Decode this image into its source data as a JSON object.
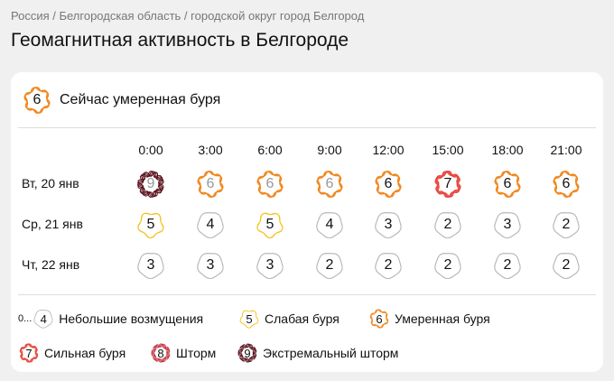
{
  "breadcrumb": "Россия / Белгородская область / городской округ город Белгород",
  "title": "Геомагнитная активность в Белгороде",
  "now": {
    "value": "6",
    "label": "Сейчас умеренная буря"
  },
  "colors": {
    "calm": "#b9b9b9",
    "5": "#f2c21b",
    "6": "#f0861c",
    "7": "#e7443a",
    "8": "#c5303d",
    "9": "#7b1523"
  },
  "times": [
    "0:00",
    "3:00",
    "6:00",
    "9:00",
    "12:00",
    "15:00",
    "18:00",
    "21:00"
  ],
  "days": [
    {
      "label": "Вт, 20 янв",
      "values": [
        9,
        6,
        6,
        6,
        6,
        7,
        6,
        6
      ],
      "past_count": 4
    },
    {
      "label": "Ср, 21 янв",
      "values": [
        5,
        4,
        5,
        4,
        3,
        2,
        3,
        2
      ],
      "past_count": 0
    },
    {
      "label": "Чт, 22 янв",
      "values": [
        3,
        3,
        3,
        2,
        2,
        2,
        2,
        2
      ],
      "past_count": 0
    }
  ],
  "legend": [
    {
      "prefix": "0...",
      "value": "4",
      "label": "Небольшие возмущения"
    },
    {
      "value": "5",
      "label": "Слабая буря"
    },
    {
      "value": "6",
      "label": "Умеренная буря"
    },
    {
      "value": "7",
      "label": "Сильная буря"
    },
    {
      "value": "8",
      "label": "Шторм"
    },
    {
      "value": "9",
      "label": "Экстремальный шторм"
    }
  ]
}
